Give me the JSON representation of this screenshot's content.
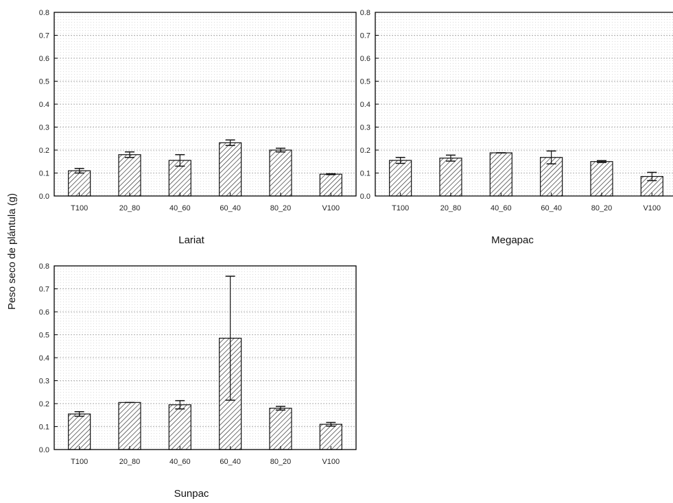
{
  "figure": {
    "ylabel": "Peso seco de plántula (g)"
  },
  "chart_data": [
    {
      "type": "bar",
      "title": "Lariat",
      "xlabel": "Lariat",
      "ylabel": "Peso seco de plántula (g)",
      "ylim": [
        0,
        0.8
      ],
      "yticks": [
        "0.0",
        "0.1",
        "0.2",
        "0.3",
        "0.4",
        "0.5",
        "0.6",
        "0.7",
        "0.8"
      ],
      "grid": true,
      "categories": [
        "T100",
        "20_80",
        "40_60",
        "60_40",
        "80_20",
        "V100"
      ],
      "values": [
        0.11,
        0.18,
        0.155,
        0.232,
        0.2,
        0.095
      ],
      "error_low": [
        0.1,
        0.168,
        0.13,
        0.22,
        0.192,
        0.093
      ],
      "error_high": [
        0.12,
        0.192,
        0.18,
        0.244,
        0.208,
        0.097
      ]
    },
    {
      "type": "bar",
      "title": "Megapac",
      "xlabel": "Megapac",
      "ylim": [
        0,
        0.8
      ],
      "yticks": [
        "0.0",
        "0.1",
        "0.2",
        "0.3",
        "0.4",
        "0.5",
        "0.6",
        "0.7",
        "0.8"
      ],
      "grid": true,
      "categories": [
        "T100",
        "20_80",
        "40_60",
        "60_40",
        "80_20",
        "V100"
      ],
      "values": [
        0.155,
        0.165,
        0.188,
        0.168,
        0.15,
        0.085
      ],
      "error_low": [
        0.142,
        0.152,
        0.188,
        0.14,
        0.146,
        0.067
      ],
      "error_high": [
        0.168,
        0.178,
        0.188,
        0.196,
        0.154,
        0.103
      ]
    },
    {
      "type": "bar",
      "title": "Sunpac",
      "xlabel": "Sunpac",
      "ylabel": "Peso seco de plántula (g)",
      "ylim": [
        0,
        0.8
      ],
      "yticks": [
        "0.0",
        "0.1",
        "0.2",
        "0.3",
        "0.4",
        "0.5",
        "0.6",
        "0.7",
        "0.8"
      ],
      "grid": true,
      "categories": [
        "T100",
        "20_80",
        "40_60",
        "60_40",
        "80_20",
        "V100"
      ],
      "values": [
        0.155,
        0.205,
        0.195,
        0.485,
        0.18,
        0.11
      ],
      "error_low": [
        0.145,
        0.205,
        0.177,
        0.215,
        0.172,
        0.102
      ],
      "error_high": [
        0.165,
        0.205,
        0.213,
        0.755,
        0.188,
        0.118
      ]
    }
  ]
}
